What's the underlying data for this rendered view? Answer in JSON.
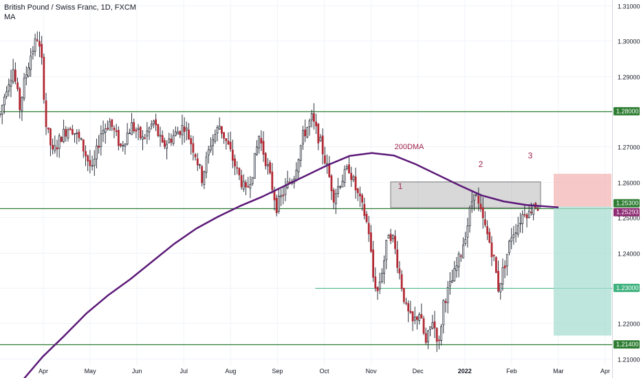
{
  "header": {
    "symbol_title": "British Pound / Swiss Franc, 1D, FXCM",
    "indicator": "MA"
  },
  "chart_data": {
    "type": "candlestick",
    "title": "British Pound / Swiss Franc, 1D, FXCM",
    "ylim": [
      1.2045,
      1.3115
    ],
    "y_ticks": [
      "1.31000",
      "1.30000",
      "1.29000",
      "1.28000",
      "1.27000",
      "1.26000",
      "1.25000",
      "1.24000",
      "1.23000",
      "1.22000",
      "1.21000"
    ],
    "x_ticks": [
      "Apr",
      "May",
      "Jun",
      "Jul",
      "Aug",
      "Sep",
      "Oct",
      "Nov",
      "Dec",
      "2022",
      "Feb",
      "Mar",
      "Apr"
    ],
    "colors": {
      "up": "#ffffff",
      "down": "#b22833",
      "wick": "#2a2e39",
      "ma": "#5b1877",
      "hline_dark": "#2e7d32",
      "hline_light": "#3fb27f",
      "zone": "#9e9e9e",
      "stop": "#f4b5b5",
      "target": "#a8ddd2",
      "annotation": "#a0244a"
    },
    "price_path": [
      [
        0,
        1.279
      ],
      [
        3,
        1.287
      ],
      [
        6,
        1.292
      ],
      [
        9,
        1.281
      ],
      [
        11,
        1.288
      ],
      [
        14,
        1.296
      ],
      [
        17,
        1.301
      ],
      [
        19,
        1.294
      ],
      [
        21,
        1.276
      ],
      [
        24,
        1.268
      ],
      [
        28,
        1.273
      ],
      [
        32,
        1.276
      ],
      [
        37,
        1.271
      ],
      [
        42,
        1.263
      ],
      [
        46,
        1.274
      ],
      [
        50,
        1.277
      ],
      [
        55,
        1.27
      ],
      [
        60,
        1.276
      ],
      [
        65,
        1.272
      ],
      [
        70,
        1.277
      ],
      [
        74,
        1.27
      ],
      [
        79,
        1.273
      ],
      [
        84,
        1.276
      ],
      [
        89,
        1.268
      ],
      [
        92,
        1.261
      ],
      [
        96,
        1.271
      ],
      [
        100,
        1.276
      ],
      [
        104,
        1.27
      ],
      [
        108,
        1.263
      ],
      [
        112,
        1.257
      ],
      [
        115,
        1.263
      ],
      [
        118,
        1.273
      ],
      [
        122,
        1.264
      ],
      [
        126,
        1.253
      ],
      [
        130,
        1.258
      ],
      [
        134,
        1.262
      ],
      [
        138,
        1.273
      ],
      [
        142,
        1.278
      ],
      [
        146,
        1.271
      ],
      [
        149,
        1.264
      ],
      [
        152,
        1.256
      ],
      [
        155,
        1.26
      ],
      [
        159,
        1.264
      ],
      [
        162,
        1.258
      ],
      [
        166,
        1.251
      ],
      [
        168,
        1.246
      ],
      [
        170,
        1.233
      ],
      [
        172,
        1.229
      ],
      [
        175,
        1.238
      ],
      [
        177,
        1.246
      ],
      [
        179,
        1.244
      ],
      [
        182,
        1.234
      ],
      [
        185,
        1.224
      ],
      [
        188,
        1.22
      ],
      [
        191,
        1.223
      ],
      [
        194,
        1.214
      ],
      [
        197,
        1.221
      ],
      [
        200,
        1.214
      ],
      [
        202,
        1.226
      ],
      [
        206,
        1.232
      ],
      [
        210,
        1.24
      ],
      [
        213,
        1.248
      ],
      [
        216,
        1.258
      ],
      [
        218,
        1.253
      ],
      [
        221,
        1.247
      ],
      [
        223,
        1.243
      ],
      [
        225,
        1.238
      ],
      [
        227,
        1.23
      ],
      [
        230,
        1.237
      ],
      [
        233,
        1.245
      ],
      [
        236,
        1.248
      ],
      [
        239,
        1.252
      ],
      [
        241,
        1.251
      ],
      [
        243,
        1.254
      ],
      [
        245,
        1.253
      ]
    ],
    "ma_points": [
      [
        0,
        1.2032
      ],
      [
        10,
        1.2105
      ],
      [
        20,
        1.2165
      ],
      [
        30,
        1.2228
      ],
      [
        40,
        1.228
      ],
      [
        50,
        1.2325
      ],
      [
        60,
        1.2375
      ],
      [
        70,
        1.2425
      ],
      [
        80,
        1.2468
      ],
      [
        90,
        1.2502
      ],
      [
        100,
        1.2532
      ],
      [
        110,
        1.2558
      ],
      [
        120,
        1.2588
      ],
      [
        130,
        1.2618
      ],
      [
        140,
        1.2648
      ],
      [
        150,
        1.2674
      ],
      [
        160,
        1.2682
      ],
      [
        170,
        1.2675
      ],
      [
        180,
        1.265
      ],
      [
        190,
        1.262
      ],
      [
        200,
        1.259
      ],
      [
        210,
        1.2562
      ],
      [
        220,
        1.2545
      ],
      [
        230,
        1.2535
      ],
      [
        245,
        1.2528
      ]
    ],
    "candle_count": 246,
    "candle_x_range": [
      0,
      782
    ],
    "horizontal_lines": [
      {
        "y": 1.28,
        "style": "dark",
        "label": "1.28000"
      },
      {
        "y": 1.2525,
        "style": "dark",
        "label": ""
      },
      {
        "y": 1.23,
        "style": "light",
        "label": "1.23000",
        "from_fraction": 0.515
      },
      {
        "y": 1.214,
        "style": "dark",
        "label": "1.21400"
      }
    ],
    "resistance_zone": {
      "y_low": 1.2527,
      "y_high": 1.26
    },
    "position_tool": {
      "entry": 1.253,
      "stop": 1.2623,
      "target": 1.2165
    },
    "annotations": [
      {
        "text": "200DMA",
        "price": 1.2693
      },
      {
        "text": "1",
        "price": 1.258
      },
      {
        "text": "2",
        "price": 1.2642
      },
      {
        "text": "3",
        "price": 1.2667
      }
    ],
    "price_labels": [
      {
        "value": "1.25300",
        "kind": "entry"
      },
      {
        "value": "1.25293",
        "kind": "last"
      }
    ]
  }
}
